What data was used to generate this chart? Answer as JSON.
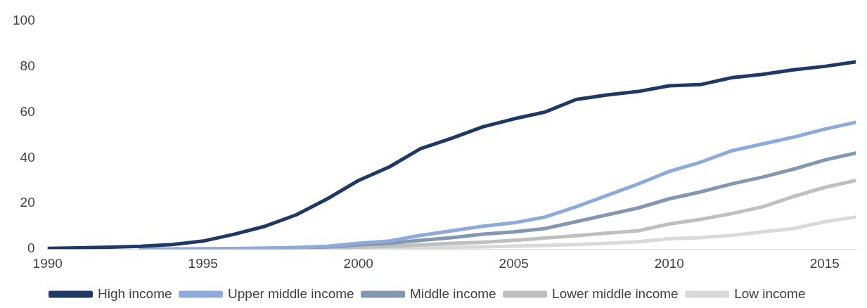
{
  "chart_data": {
    "type": "line",
    "xlim": [
      1990,
      2016
    ],
    "xticks": [
      1990,
      1995,
      2000,
      2005,
      2010,
      2015
    ],
    "ylim": [
      0,
      100
    ],
    "yticks": [
      0,
      20,
      40,
      60,
      80,
      100
    ],
    "grid": false,
    "legend": "bottom",
    "marker": "none",
    "line_style": "solid",
    "series": [
      {
        "name": "High income",
        "color": "#1f3864",
        "x": [
          1990,
          1991,
          1992,
          1993,
          1994,
          1995,
          1996,
          1997,
          1998,
          1999,
          2000,
          2001,
          2002,
          2003,
          2004,
          2005,
          2006,
          2007,
          2008,
          2009,
          2010,
          2011,
          2012,
          2013,
          2014,
          2015,
          2016
        ],
        "values": [
          0.3,
          0.5,
          0.8,
          1.2,
          2,
          3.5,
          6.5,
          10,
          15,
          22,
          30,
          36,
          44,
          48.5,
          53.5,
          57,
          60,
          65.5,
          67.5,
          69,
          71.5,
          72,
          75,
          76.5,
          78.5,
          80,
          82
        ]
      },
      {
        "name": "Upper middle income",
        "color": "#8eaadb",
        "x": [
          1993,
          1994,
          1995,
          1996,
          1997,
          1998,
          1999,
          2000,
          2001,
          2002,
          2003,
          2004,
          2005,
          2006,
          2007,
          2008,
          2009,
          2010,
          2011,
          2012,
          2013,
          2014,
          2015,
          2016
        ],
        "values": [
          0,
          0,
          0.1,
          0.2,
          0.4,
          0.7,
          1.2,
          2.5,
          3.5,
          6,
          8,
          10,
          11.5,
          14,
          18.5,
          23.5,
          28.5,
          34,
          38,
          43,
          46,
          49,
          52.5,
          55.5
        ]
      },
      {
        "name": "Middle income",
        "color": "#8497b0",
        "x": [
          1993,
          1994,
          1995,
          1996,
          1997,
          1998,
          1999,
          2000,
          2001,
          2002,
          2003,
          2004,
          2005,
          2006,
          2007,
          2008,
          2009,
          2010,
          2011,
          2012,
          2013,
          2014,
          2015,
          2016
        ],
        "values": [
          0,
          0,
          0.1,
          0.2,
          0.3,
          0.6,
          1,
          1.8,
          2.5,
          3.8,
          5,
          6.5,
          7.5,
          9,
          12,
          15,
          18,
          22,
          25,
          28.5,
          31.5,
          35,
          39,
          42
        ]
      },
      {
        "name": "Lower middle income",
        "color": "#bfbfbf",
        "x": [
          1996,
          1997,
          1998,
          1999,
          2000,
          2001,
          2002,
          2003,
          2004,
          2005,
          2006,
          2007,
          2008,
          2009,
          2010,
          2011,
          2012,
          2013,
          2014,
          2015,
          2016
        ],
        "values": [
          0,
          0.1,
          0.2,
          0.4,
          0.8,
          1.2,
          1.8,
          2.5,
          3,
          3.8,
          4.8,
          5.8,
          7,
          8,
          11,
          13,
          15.5,
          18.5,
          23,
          27,
          30
        ]
      },
      {
        "name": "Low income",
        "color": "#d9d9d9",
        "x": [
          1997,
          1998,
          1999,
          2000,
          2001,
          2002,
          2003,
          2004,
          2005,
          2006,
          2007,
          2008,
          2009,
          2010,
          2011,
          2012,
          2013,
          2014,
          2015,
          2016
        ],
        "values": [
          0,
          0,
          0.1,
          0.2,
          0.3,
          0.5,
          0.8,
          1,
          1.3,
          1.6,
          2,
          2.5,
          3.2,
          4.5,
          5,
          6,
          7.5,
          9,
          12,
          14
        ]
      }
    ]
  }
}
